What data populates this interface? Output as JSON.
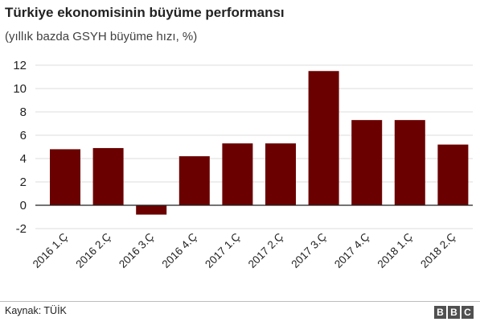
{
  "title": "Türkiye ekonomisinin büyüme performansı",
  "subtitle": "(yıllık bazda GSYH büyüme hızı, %)",
  "source": "Kaynak: TÜİK",
  "logo": [
    "B",
    "B",
    "C"
  ],
  "colors": {
    "bar": "#6b0000",
    "grid": "#dcdcdc",
    "axis": "#222222"
  },
  "chart_data": {
    "type": "bar",
    "categories": [
      "2016 1.Ç",
      "2016 2.Ç",
      "2016 3.Ç",
      "2016 4.Ç",
      "2017 1.Ç",
      "2017 2.Ç",
      "2017 3.Ç",
      "2017 4.Ç",
      "2018 1.Ç",
      "2018 2.Ç"
    ],
    "values": [
      4.8,
      4.9,
      -0.8,
      4.2,
      5.3,
      5.3,
      11.5,
      7.3,
      7.3,
      5.2
    ],
    "yticks": [
      -2,
      0,
      2,
      4,
      6,
      8,
      10,
      12
    ],
    "ylim": [
      -2,
      12
    ],
    "grid": true,
    "legend": "none"
  }
}
